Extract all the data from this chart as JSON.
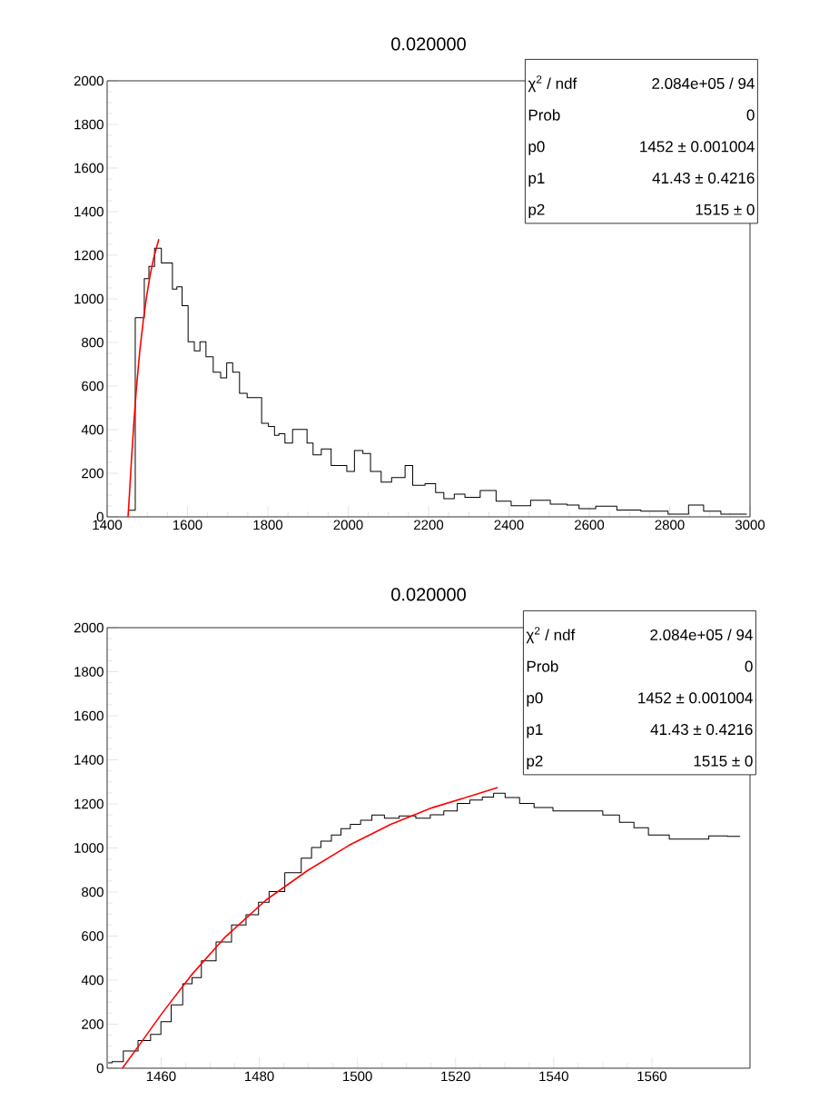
{
  "chart_data": [
    {
      "type": "step",
      "title": "0.020000",
      "xlim": [
        1400,
        3000
      ],
      "ylim": [
        0,
        2000
      ],
      "xticks": [
        1400,
        1600,
        1800,
        2000,
        2200,
        2400,
        2600,
        2800,
        3000
      ],
      "yticks": [
        0,
        200,
        400,
        600,
        800,
        1000,
        1200,
        1400,
        1600,
        1800,
        2000
      ],
      "series": [
        {
          "color": "#000000",
          "line_style": "solid",
          "x": [
            1453,
            1487,
            1498,
            1510,
            1526,
            1544,
            1559,
            1566,
            1581,
            1592,
            1611,
            1623,
            1639,
            1653,
            1675,
            1690,
            1705,
            1720,
            1739,
            1758,
            1777,
            1792,
            1811,
            1822,
            1833,
            1852,
            1871,
            1890,
            1905,
            1920,
            1946,
            1969,
            1991,
            2002,
            2029,
            2044,
            2067,
            2097,
            2119,
            2134,
            2149,
            2172,
            2210,
            2225,
            2251,
            2277,
            2304,
            2353,
            2383,
            2428,
            2480,
            2526,
            2563,
            2586,
            2646,
            2691,
            2766,
            2826,
            2868,
            2901,
            2954,
            2992
          ],
          "values": [
            30,
            913,
            1093,
            1149,
            1232,
            1165,
            1165,
            1045,
            1055,
            969,
            803,
            761,
            803,
            734,
            664,
            637,
            706,
            664,
            567,
            547,
            547,
            429,
            415,
            374,
            381,
            339,
            401,
            401,
            339,
            284,
            311,
            235,
            235,
            208,
            304,
            291,
            208,
            159,
            180,
            180,
            235,
            145,
            152,
            111,
            83,
            104,
            90,
            121,
            72,
            51,
            76,
            58,
            54,
            37,
            49,
            31,
            26,
            12,
            54,
            26,
            12,
            12
          ]
        },
        {
          "type": "line",
          "color": "#ff0000",
          "line_style": "solid",
          "x": [
            1452.1,
            1455.9,
            1460.2,
            1466.1,
            1472.9,
            1481.4,
            1489.8,
            1498.3,
            1506.8,
            1515.3,
            1523.7,
            1528.6
          ],
          "values": [
            0,
            116,
            250,
            421,
            592,
            764,
            897,
            1012,
            1107,
            1183,
            1240,
            1274
          ]
        }
      ],
      "annotations": [
        "χ$^{2}$ / ndf",
        "2.084e+05 / 94",
        "Prob",
        "0",
        "p0",
        "1452 ± 0.001004",
        "p1",
        "41.43 ± 0.4216",
        "p2",
        "1515 ±     0"
      ]
    },
    {
      "type": "step",
      "title": "0.020000",
      "xlim": [
        1449,
        1580
      ],
      "ylim": [
        0,
        2000
      ],
      "xticks": [
        1460,
        1480,
        1500,
        1520,
        1540,
        1560
      ],
      "yticks": [
        0,
        200,
        400,
        600,
        800,
        1000,
        1200,
        1400,
        1600,
        1800,
        2000
      ],
      "series": [
        {
          "color": "#000000",
          "line_style": "solid",
          "x": [
            1449.2,
            1450.8,
            1453.8,
            1456.8,
            1458.9,
            1461.0,
            1463.1,
            1465.7,
            1466.9,
            1469.5,
            1472.9,
            1475.8,
            1478.8,
            1480.9,
            1483.1,
            1487.3,
            1489.8,
            1491.5,
            1493.6,
            1495.8,
            1497.5,
            1499.6,
            1501.7,
            1504.2,
            1506.8,
            1510.2,
            1513.6,
            1516.1,
            1519.1,
            1521.6,
            1524.2,
            1526.7,
            1528.8,
            1531.4,
            1534.7,
            1537.3,
            1542.4,
            1548.3,
            1551.7,
            1555.1,
            1557.6,
            1561.0,
            1566.1,
            1570.3,
            1572.9,
            1578.0
          ],
          "values": [
            25,
            30,
            78,
            126,
            154,
            211,
            288,
            383,
            411,
            488,
            573,
            650,
            697,
            754,
            802,
            888,
            954,
            1002,
            1031,
            1059,
            1088,
            1107,
            1126,
            1149,
            1135,
            1145,
            1135,
            1151,
            1168,
            1202,
            1217,
            1231,
            1248,
            1229,
            1202,
            1183,
            1168,
            1168,
            1149,
            1116,
            1092,
            1059,
            1040,
            1040,
            1055,
            1053
          ]
        },
        {
          "type": "line",
          "color": "#ff0000",
          "line_style": "solid",
          "x": [
            1452.1,
            1455.9,
            1460.2,
            1466.1,
            1472.9,
            1481.4,
            1489.8,
            1498.3,
            1506.8,
            1515.3,
            1523.7,
            1528.6
          ],
          "values": [
            0,
            116,
            250,
            421,
            592,
            764,
            897,
            1012,
            1107,
            1183,
            1240,
            1274
          ]
        }
      ],
      "annotations": [
        "χ$^{2}$ / ndf",
        "2.084e+05 / 94",
        "Prob",
        "0",
        "p0",
        "1452 ± 0.001004",
        "p1",
        "41.43 ± 0.4216",
        "p2",
        "1515 ±     0"
      ]
    }
  ]
}
